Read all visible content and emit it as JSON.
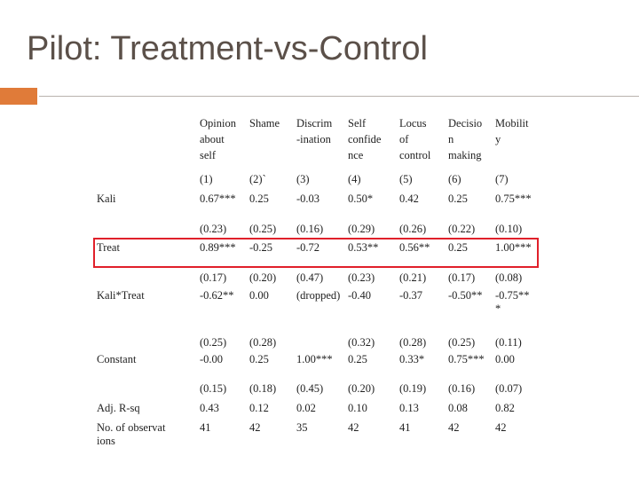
{
  "title": "Pilot: Treatment-vs-Control",
  "table": {
    "header": [
      [
        "Opinion",
        "about",
        "self"
      ],
      [
        "Shame"
      ],
      [
        "Discrim",
        "-ination"
      ],
      [
        "Self",
        "confide",
        "nce"
      ],
      [
        "Locus",
        "of",
        "control"
      ],
      [
        "Decisio",
        "n",
        "making"
      ],
      [
        "Mobilit",
        "y"
      ]
    ],
    "column_numbers": [
      "(1)",
      "(2)`",
      "(3)",
      "(4)",
      "(5)",
      "(6)",
      "(7)"
    ],
    "rows": [
      {
        "label": "Kali",
        "cells": [
          "0.67***",
          "0.25",
          "-0.03",
          "0.50*",
          "0.42",
          "0.25",
          "0.75***"
        ]
      },
      {
        "cells": [
          "(0.23)",
          "(0.25)",
          "(0.16)",
          "(0.29)",
          "(0.26)",
          "(0.22)",
          "(0.10)"
        ]
      },
      {
        "label": "Treat",
        "cells": [
          "0.89***",
          "-0.25",
          "-0.72",
          "0.53**",
          "0.56**",
          "0.25",
          "1.00***"
        ]
      },
      {
        "cells": [
          "(0.17)",
          "(0.20)",
          "(0.47)",
          "(0.23)",
          "(0.21)",
          "(0.17)",
          "(0.08)"
        ]
      },
      {
        "label": "Kali*Treat",
        "cells": [
          "-0.62**",
          "0.00",
          "(dropped)",
          "-0.40",
          "-0.37",
          "-0.50**",
          "-0.75***"
        ]
      },
      {
        "cells": [
          "(0.25)",
          "(0.28)",
          null,
          "(0.32)",
          "(0.28)",
          "(0.25)",
          "(0.11)"
        ]
      },
      {
        "label": "Constant",
        "cells": [
          "-0.00",
          "0.25",
          "1.00***",
          "0.25",
          "0.33*",
          "0.75***",
          "0.00"
        ]
      },
      {
        "cells": [
          "(0.15)",
          "(0.18)",
          "(0.45)",
          "(0.20)",
          "(0.19)",
          "(0.16)",
          "(0.07)"
        ]
      },
      {
        "label": "Adj. R-sq",
        "cells": [
          "0.43",
          "0.12",
          "0.02",
          "0.10",
          "0.13",
          "0.08",
          "0.82"
        ]
      },
      {
        "label": "No. of observations",
        "cells": [
          "41",
          "42",
          "35",
          "42",
          "41",
          "42",
          "42"
        ]
      }
    ]
  }
}
